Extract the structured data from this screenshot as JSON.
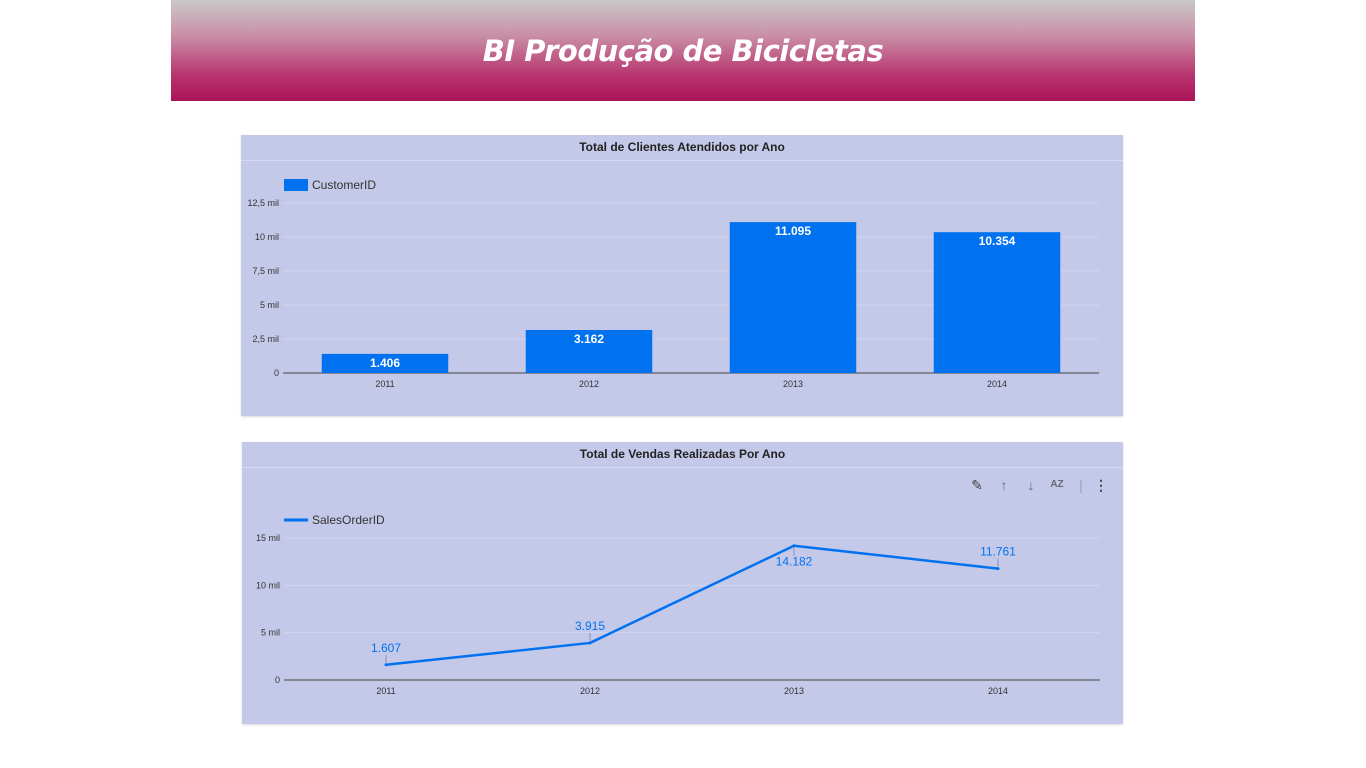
{
  "header": {
    "title": "BI Produção de Bicicletas"
  },
  "toolbar_icons": [
    "pencil-icon",
    "arrow-up-icon",
    "arrow-down-icon",
    "sort-az-icon",
    "more-vert-icon"
  ],
  "colors": {
    "series": "#0072f0",
    "panel": "#c5c9e9",
    "banner_top": "#c9c9c9",
    "banner_bottom": "#ab1457"
  },
  "chart_data": [
    {
      "type": "bar",
      "title": "Total de Clientes Atendidos por Ano",
      "categories": [
        "2011",
        "2012",
        "2013",
        "2014"
      ],
      "series": [
        {
          "name": "CustomerID",
          "values": [
            1406,
            3162,
            11095,
            10354
          ]
        }
      ],
      "data_labels": [
        "1.406",
        "3.162",
        "11.095",
        "10.354"
      ],
      "yticks": [
        0,
        2500,
        5000,
        7500,
        10000,
        12500
      ],
      "ytick_labels": [
        "0",
        "2,5 mil",
        "5 mil",
        "7,5 mil",
        "10 mil",
        "12,5 mil"
      ],
      "ylim": [
        0,
        12500
      ],
      "legend": "top-left",
      "grid": true
    },
    {
      "type": "line",
      "title": "Total de Vendas Realizadas Por Ano",
      "categories": [
        "2011",
        "2012",
        "2013",
        "2014"
      ],
      "series": [
        {
          "name": "SalesOrderID",
          "values": [
            1607,
            3915,
            14182,
            11761
          ]
        }
      ],
      "data_labels": [
        "1.607",
        "3.915",
        "14.182",
        "11.761"
      ],
      "yticks": [
        0,
        5000,
        10000,
        15000
      ],
      "ytick_labels": [
        "0",
        "5 mil",
        "10 mil",
        "15 mil"
      ],
      "ylim": [
        0,
        15000
      ],
      "legend": "top-left",
      "grid": true
    }
  ]
}
